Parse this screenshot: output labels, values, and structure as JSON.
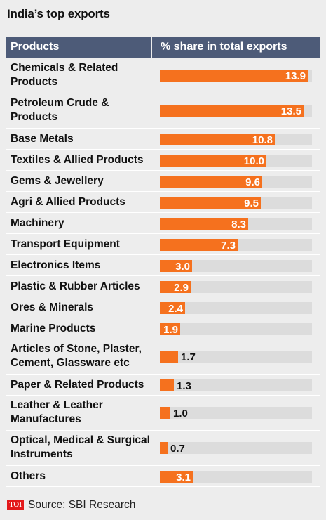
{
  "title": "India’s top exports",
  "header": {
    "col1": "Products",
    "col2": "% share in total exports"
  },
  "footer": {
    "logo_text": "TOI",
    "source": "Source: SBI Research"
  },
  "colors": {
    "bar": "#f5711e",
    "track": "#dcdcdc",
    "header_bg": "#4d5b78",
    "background": "#ededed"
  },
  "chart_data": {
    "type": "bar",
    "orientation": "horizontal",
    "categories": [
      "Chemicals & Related Products",
      "Petroleum Crude & Products",
      "Base Metals",
      "Textiles & Allied Products",
      "Gems & Jewellery",
      "Agri & Allied Products",
      "Machinery",
      "Transport Equipment",
      "Electronics Items",
      "Plastic & Rubber Articles",
      "Ores & Minerals",
      "Marine Products",
      "Articles of Stone, Plaster, Cement, Glassware etc",
      "Paper & Related Products",
      "Leather & Leather Manufactures",
      "Optical, Medical & Surgical Instruments",
      "Others"
    ],
    "values": [
      13.9,
      13.5,
      10.8,
      10.0,
      9.6,
      9.5,
      8.3,
      7.3,
      3.0,
      2.9,
      2.4,
      1.9,
      1.7,
      1.3,
      1.0,
      0.7,
      3.1
    ],
    "labels": [
      "13.9",
      "13.5",
      "10.8",
      "10.0",
      "9.6",
      "9.5",
      "8.3",
      "7.3",
      "3.0",
      "2.9",
      "2.4",
      "1.9",
      "1.7",
      "1.3",
      "1.0",
      "0.7",
      "3.1"
    ],
    "xlim": [
      0,
      14.3
    ],
    "xlabel": "% share in total exports",
    "ylabel": "Products",
    "grid": false,
    "legend": "none"
  }
}
